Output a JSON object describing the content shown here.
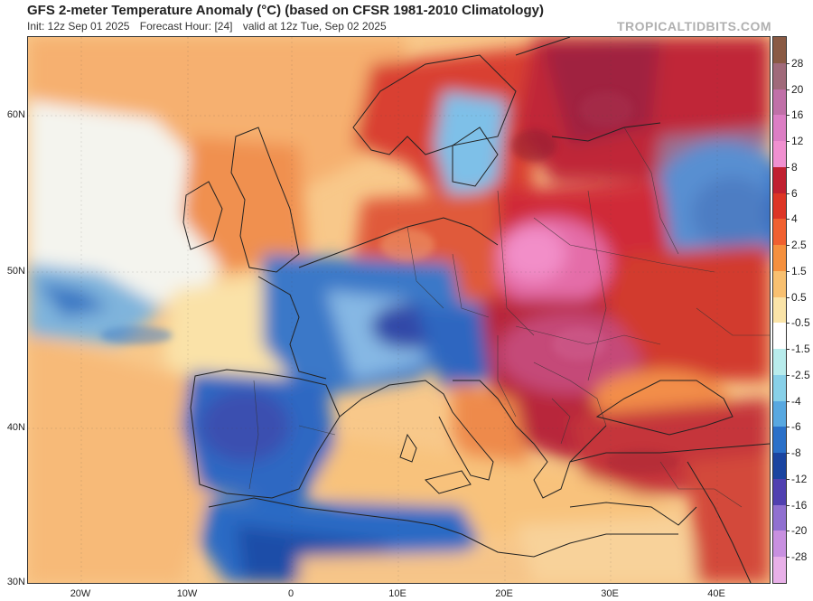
{
  "title": "GFS 2-meter Temperature Anomaly (°C) (based on CFSR 1981-2010 Climatology)",
  "init": "Init: 12z Sep 01 2025",
  "forecast_hour": "Forecast Hour: [24]",
  "valid": "valid at 12z Tue, Sep 02 2025",
  "brand": "TROPICALTIDBITS.COM",
  "lat_labels": [
    "60N",
    "50N",
    "40N",
    "30N"
  ],
  "lon_labels": [
    "20W",
    "10W",
    "0",
    "10E",
    "20E",
    "30E",
    "40E"
  ],
  "colorbar": {
    "labels": [
      "28",
      "20",
      "16",
      "12",
      "8",
      "6",
      "4",
      "2.5",
      "1.5",
      "0.5",
      "-0.5",
      "-1.5",
      "-2.5",
      "-4",
      "-6",
      "-8",
      "-12",
      "-16",
      "-20",
      "-28"
    ],
    "colors": [
      "#8a5a44",
      "#a06a7a",
      "#c070a8",
      "#dc7ec4",
      "#f090d0",
      "#c02030",
      "#dd3525",
      "#f06030",
      "#f5903e",
      "#f8c070",
      "#fae4a8",
      "#ffffff",
      "#b8ecec",
      "#88d0e8",
      "#58a8e0",
      "#2a70c8",
      "#1a44a0",
      "#5040b0",
      "#9070d0",
      "#c890e0",
      "#e8b0e8"
    ]
  }
}
